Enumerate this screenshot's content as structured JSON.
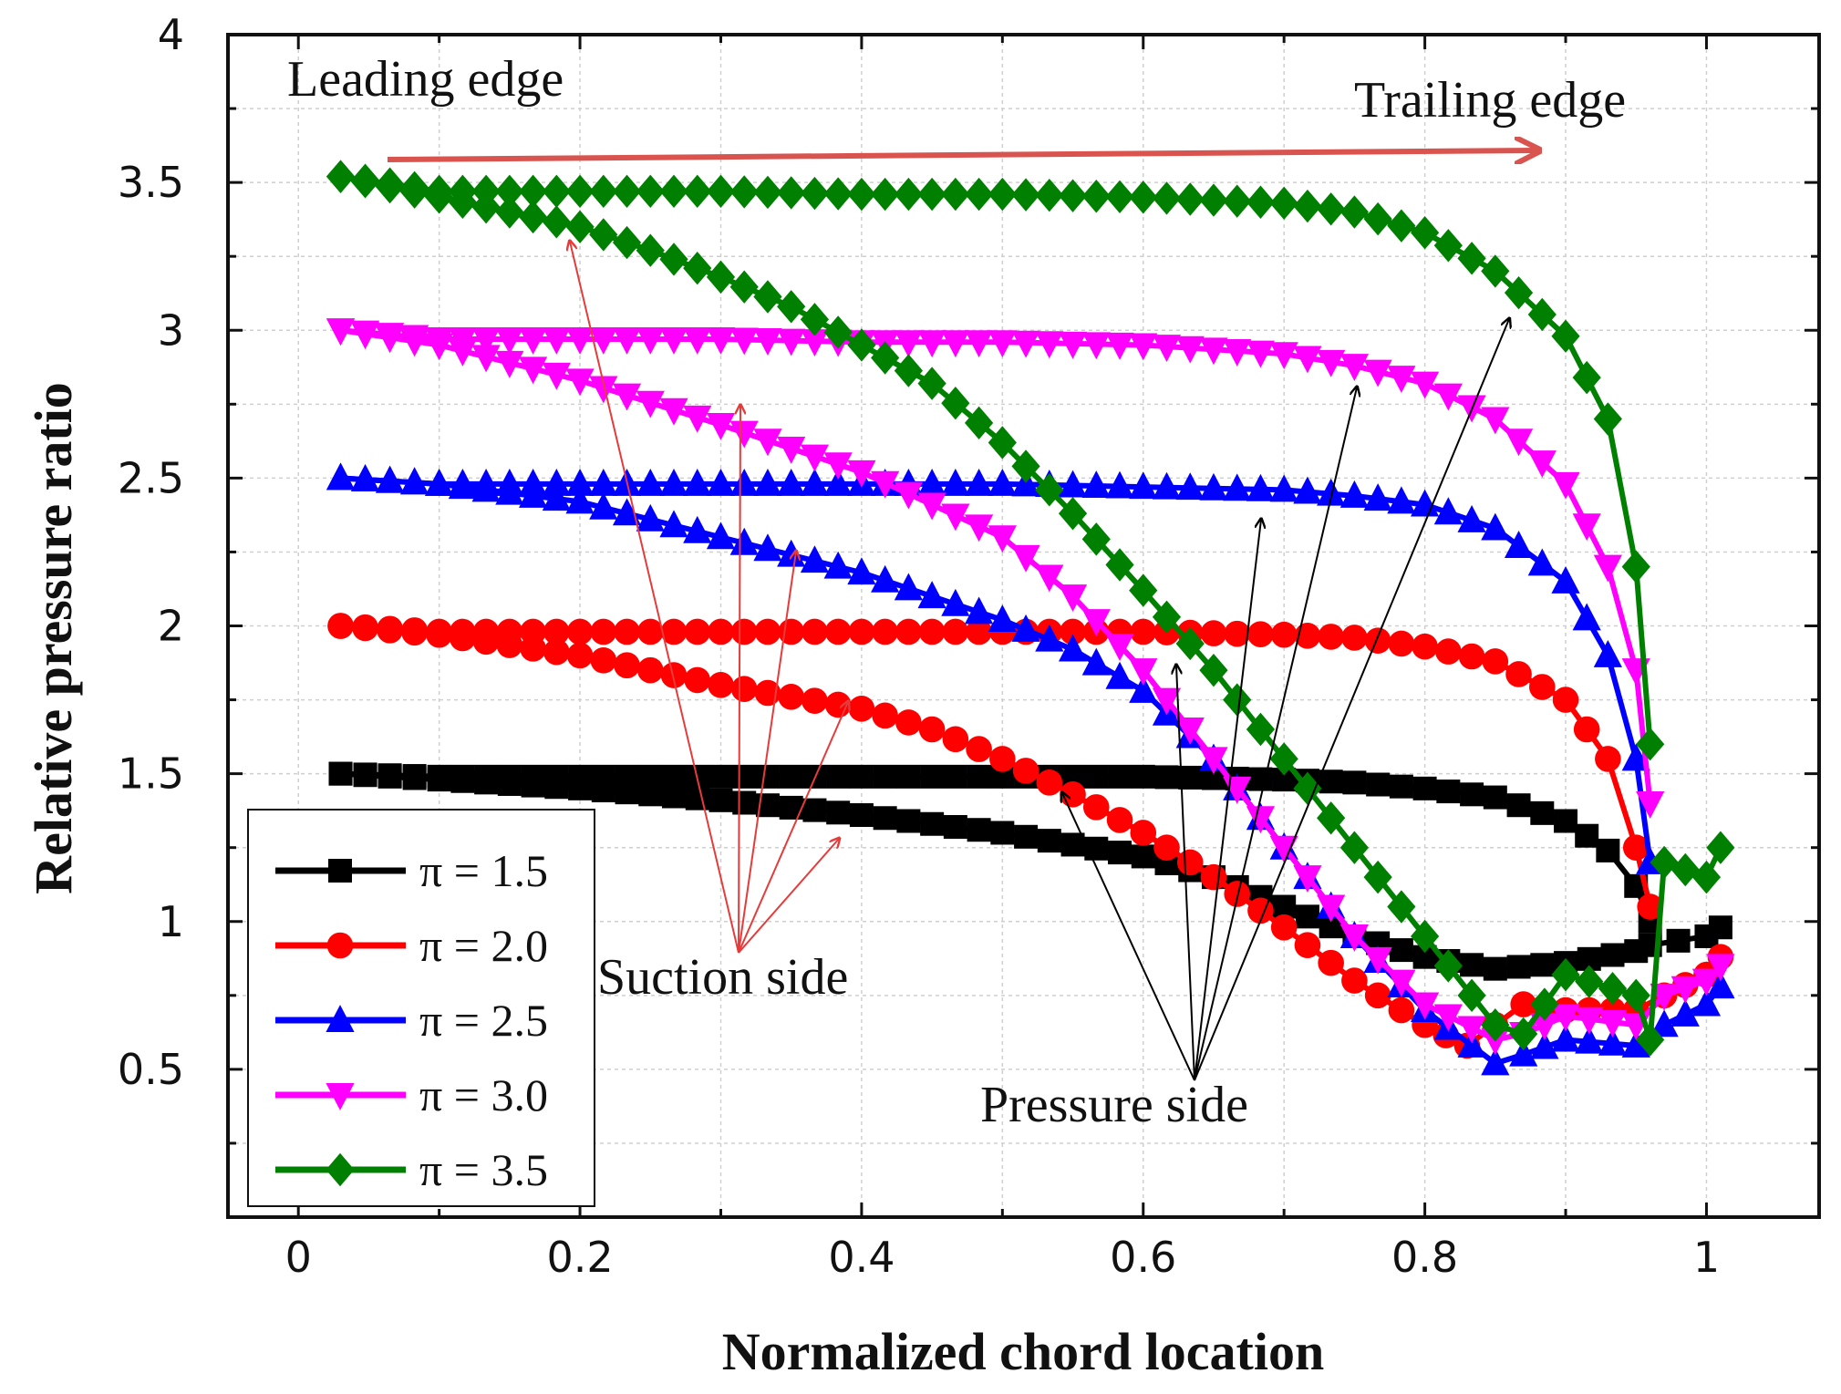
{
  "chart_data": {
    "type": "line",
    "xlabel": "Normalized chord location",
    "ylabel": "Relative pressure ratio",
    "xlim": [
      -0.05,
      1.08
    ],
    "ylim": [
      0,
      4
    ],
    "x_ticks": [
      "0",
      "0.2",
      "0.4",
      "0.6",
      "0.8",
      "1"
    ],
    "y_ticks": [
      "0.5",
      "1",
      "1.5",
      "2",
      "2.5",
      "3",
      "3.5",
      "4"
    ],
    "grid": true,
    "legend_position": "bottom-left",
    "annotations": {
      "leading_edge": "Leading edge",
      "trailing_edge": "Trailing edge",
      "suction_side": "Suction side",
      "pressure_side": "Pressure side"
    },
    "series": [
      {
        "name": "π = 1.5",
        "color": "#000000",
        "marker": "square",
        "pressure_side": {
          "x": [
            0.03,
            0.1,
            0.2,
            0.3,
            0.4,
            0.5,
            0.6,
            0.7,
            0.75,
            0.8,
            0.85,
            0.9,
            0.93,
            0.95,
            0.96
          ],
          "y": [
            1.5,
            1.49,
            1.49,
            1.49,
            1.49,
            1.49,
            1.49,
            1.48,
            1.47,
            1.45,
            1.42,
            1.34,
            1.24,
            1.12,
            1.0
          ]
        },
        "suction_side": {
          "x": [
            0.03,
            0.1,
            0.2,
            0.3,
            0.4,
            0.5,
            0.6,
            0.65,
            0.7,
            0.75,
            0.8,
            0.85,
            0.9,
            0.95,
            0.96,
            1.0,
            1.01
          ],
          "y": [
            1.5,
            1.48,
            1.45,
            1.41,
            1.36,
            1.3,
            1.22,
            1.15,
            1.05,
            0.95,
            0.88,
            0.84,
            0.86,
            0.9,
            0.92,
            0.95,
            0.98
          ]
        }
      },
      {
        "name": "π = 2.0",
        "color": "#ff0000",
        "marker": "circle",
        "pressure_side": {
          "x": [
            0.03,
            0.1,
            0.2,
            0.3,
            0.4,
            0.5,
            0.6,
            0.7,
            0.75,
            0.8,
            0.85,
            0.9,
            0.93,
            0.95,
            0.96
          ],
          "y": [
            2.0,
            1.98,
            1.98,
            1.98,
            1.98,
            1.98,
            1.98,
            1.97,
            1.96,
            1.93,
            1.88,
            1.75,
            1.55,
            1.25,
            1.05
          ]
        },
        "suction_side": {
          "x": [
            0.03,
            0.1,
            0.2,
            0.3,
            0.4,
            0.45,
            0.5,
            0.55,
            0.6,
            0.65,
            0.7,
            0.75,
            0.8,
            0.83,
            0.85,
            0.87,
            0.9,
            0.95,
            0.97,
            1.0,
            1.01
          ],
          "y": [
            2.0,
            1.97,
            1.9,
            1.8,
            1.72,
            1.65,
            1.55,
            1.43,
            1.3,
            1.15,
            0.98,
            0.8,
            0.65,
            0.58,
            0.65,
            0.72,
            0.7,
            0.7,
            0.75,
            0.82,
            0.88
          ]
        }
      },
      {
        "name": "π = 2.5",
        "color": "#0000ff",
        "marker": "triangle-up",
        "pressure_side": {
          "x": [
            0.03,
            0.1,
            0.2,
            0.3,
            0.4,
            0.5,
            0.6,
            0.7,
            0.75,
            0.8,
            0.85,
            0.9,
            0.93,
            0.95,
            0.96
          ],
          "y": [
            2.5,
            2.48,
            2.48,
            2.48,
            2.48,
            2.48,
            2.47,
            2.46,
            2.44,
            2.41,
            2.33,
            2.15,
            1.9,
            1.55,
            1.2
          ]
        },
        "suction_side": {
          "x": [
            0.03,
            0.1,
            0.2,
            0.3,
            0.4,
            0.5,
            0.55,
            0.6,
            0.65,
            0.7,
            0.75,
            0.8,
            0.85,
            0.87,
            0.9,
            0.95,
            0.97,
            1.0,
            1.01
          ],
          "y": [
            2.5,
            2.48,
            2.42,
            2.3,
            2.18,
            2.02,
            1.92,
            1.78,
            1.55,
            1.25,
            0.95,
            0.7,
            0.52,
            0.55,
            0.6,
            0.58,
            0.65,
            0.72,
            0.78
          ]
        }
      },
      {
        "name": "π = 3.0",
        "color": "#ff00ff",
        "marker": "triangle-down",
        "pressure_side": {
          "x": [
            0.03,
            0.1,
            0.2,
            0.3,
            0.4,
            0.5,
            0.6,
            0.7,
            0.75,
            0.8,
            0.85,
            0.9,
            0.93,
            0.95,
            0.96
          ],
          "y": [
            3.0,
            2.97,
            2.97,
            2.97,
            2.96,
            2.96,
            2.95,
            2.92,
            2.88,
            2.82,
            2.7,
            2.48,
            2.2,
            1.85,
            1.4
          ]
        },
        "suction_side": {
          "x": [
            0.03,
            0.1,
            0.2,
            0.3,
            0.4,
            0.5,
            0.55,
            0.6,
            0.65,
            0.7,
            0.75,
            0.8,
            0.85,
            0.87,
            0.9,
            0.95,
            0.97,
            1.0,
            1.01
          ],
          "y": [
            3.0,
            2.95,
            2.83,
            2.68,
            2.52,
            2.3,
            2.1,
            1.85,
            1.55,
            1.25,
            0.95,
            0.72,
            0.6,
            0.62,
            0.68,
            0.65,
            0.75,
            0.8,
            0.85
          ]
        }
      },
      {
        "name": "π = 3.5",
        "color": "#008000",
        "marker": "diamond",
        "pressure_side": {
          "x": [
            0.03,
            0.1,
            0.2,
            0.3,
            0.4,
            0.5,
            0.6,
            0.7,
            0.75,
            0.8,
            0.85,
            0.9,
            0.93,
            0.95,
            0.96
          ],
          "y": [
            3.52,
            3.47,
            3.47,
            3.47,
            3.46,
            3.46,
            3.45,
            3.43,
            3.4,
            3.33,
            3.2,
            2.98,
            2.7,
            2.2,
            1.6
          ]
        },
        "suction_side": {
          "x": [
            0.03,
            0.1,
            0.2,
            0.25,
            0.3,
            0.35,
            0.4,
            0.45,
            0.5,
            0.55,
            0.6,
            0.65,
            0.7,
            0.75,
            0.8,
            0.85,
            0.87,
            0.9,
            0.95,
            0.96,
            0.97,
            1.0,
            1.01
          ],
          "y": [
            3.52,
            3.45,
            3.35,
            3.27,
            3.18,
            3.08,
            2.95,
            2.82,
            2.62,
            2.38,
            2.12,
            1.85,
            1.55,
            1.25,
            0.95,
            0.65,
            0.62,
            0.82,
            0.75,
            0.6,
            1.2,
            1.15,
            1.25
          ]
        }
      }
    ]
  }
}
